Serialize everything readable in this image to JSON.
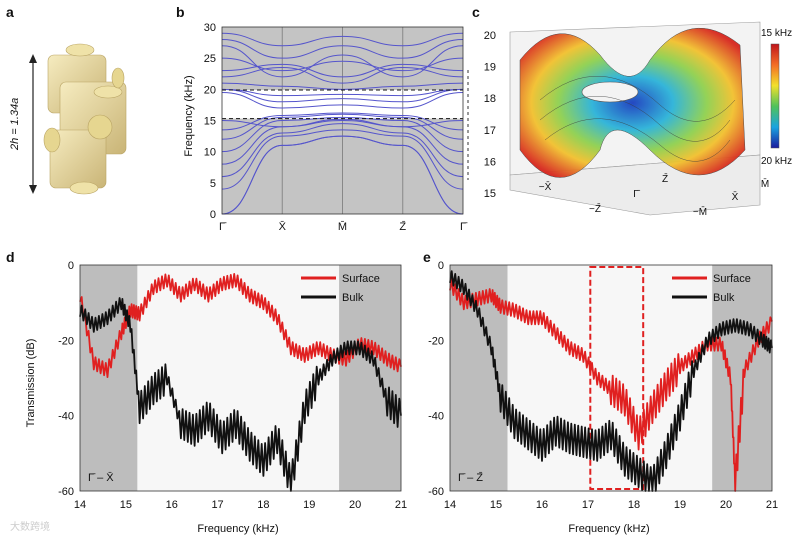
{
  "panels": {
    "a": {
      "letter": "a",
      "dimension_label": "2h = 1.34a"
    },
    "b": {
      "letter": "b",
      "ylabel": "Frequency (kHz)"
    },
    "c": {
      "letter": "c",
      "colorbar_top": "15 kHz",
      "colorbar_bottom": "20 kHz"
    },
    "d": {
      "letter": "d",
      "ylabel": "Transmission (dB)",
      "xlabel": "Frequency (kHz)",
      "path_label": "Γ̄ – X̄"
    },
    "e": {
      "letter": "e",
      "xlabel": "Frequency (kHz)",
      "path_label": "Γ̄ – Z̄"
    }
  },
  "watermark": "大数跨境",
  "colors": {
    "band": "#5555cc",
    "surface": "#e02020",
    "bulk": "#111111",
    "gray": "#bdbdbd"
  },
  "chart_data": [
    {
      "id": "b",
      "type": "line",
      "ylabel": "Frequency (kHz)",
      "ylim": [
        0,
        30
      ],
      "x_ticks": [
        "Γ̄",
        "X̄",
        "M̄",
        "Z̄",
        "Γ̄"
      ],
      "y_ticks": [
        0,
        5,
        10,
        15,
        20,
        25,
        30
      ],
      "gap_lines": [
        15.3,
        19.9
      ],
      "series": [
        {
          "values": [
            0,
            11,
            12.5,
            11,
            0
          ]
        },
        {
          "values": [
            0,
            11,
            12.5,
            11,
            0
          ]
        },
        {
          "values": [
            4,
            12.5,
            13.5,
            12.5,
            4
          ]
        },
        {
          "values": [
            6,
            13,
            14.5,
            13,
            6
          ]
        },
        {
          "values": [
            8,
            14,
            15,
            14,
            8
          ]
        },
        {
          "values": [
            10,
            15,
            15.5,
            15,
            10
          ]
        },
        {
          "values": [
            12,
            15.5,
            16,
            15.5,
            12
          ]
        },
        {
          "values": [
            13.5,
            15.8,
            16.2,
            15.8,
            13.5
          ]
        },
        {
          "values": [
            15,
            14,
            15.2,
            14,
            15
          ]
        },
        {
          "values": [
            19.5,
            17,
            17.5,
            17,
            19.5
          ]
        },
        {
          "values": [
            20,
            18,
            18.5,
            18,
            20
          ]
        },
        {
          "values": [
            20,
            19,
            19.2,
            19,
            20
          ]
        },
        {
          "values": [
            21,
            20.5,
            20,
            20.5,
            21
          ]
        },
        {
          "values": [
            22,
            23.5,
            21,
            23.5,
            22
          ]
        },
        {
          "values": [
            23,
            24,
            22,
            24,
            23
          ]
        },
        {
          "values": [
            25,
            23,
            24.5,
            23,
            25
          ]
        },
        {
          "values": [
            27,
            22,
            25.5,
            22,
            27
          ]
        },
        {
          "values": [
            28,
            25,
            27,
            25,
            28
          ]
        },
        {
          "values": [
            29,
            27,
            28.5,
            27,
            29
          ]
        }
      ]
    },
    {
      "id": "c",
      "type": "heatmap",
      "z_ticks": [
        15,
        16,
        17,
        18,
        19,
        20
      ],
      "x_ticks": [
        "−X̄",
        "−Z̄",
        "Γ̄",
        "Z̄",
        "X̄",
        "−M̄",
        "M̄"
      ],
      "colorbar": [
        "15 kHz",
        "20 kHz"
      ]
    },
    {
      "id": "d",
      "type": "line",
      "xlabel": "Frequency (kHz)",
      "ylabel": "Transmission (dB)",
      "xlim": [
        14,
        21
      ],
      "ylim": [
        -60,
        0
      ],
      "x_ticks": [
        14,
        15,
        16,
        17,
        18,
        19,
        20,
        21
      ],
      "y_ticks": [
        0,
        -20,
        -40,
        -60
      ],
      "gray_bands": [
        [
          14,
          15.25
        ],
        [
          19.65,
          21
        ]
      ],
      "legend": "top-right",
      "series": [
        {
          "name": "Surface",
          "color": "#e02020",
          "x": [
            14,
            14.3,
            14.6,
            14.9,
            15.1,
            15.3,
            15.6,
            15.9,
            16.2,
            16.5,
            16.8,
            17.1,
            17.4,
            17.7,
            18.0,
            18.3,
            18.6,
            18.9,
            19.2,
            19.5,
            19.8,
            20.1,
            20.4,
            20.7,
            21
          ],
          "y": [
            -8,
            -26,
            -28,
            -18,
            -12,
            -13,
            -6,
            -4,
            -8,
            -5,
            -8,
            -5,
            -4,
            -8,
            -10,
            -14,
            -22,
            -24,
            -22,
            -24,
            -25,
            -21,
            -22,
            -25,
            -27
          ]
        },
        {
          "name": "Bulk",
          "color": "#111111",
          "x": [
            14,
            14.3,
            14.6,
            14.9,
            15.1,
            15.3,
            15.6,
            15.9,
            16.2,
            16.5,
            16.8,
            17.1,
            17.4,
            17.7,
            18.0,
            18.3,
            18.6,
            18.9,
            19.2,
            19.5,
            19.8,
            20.1,
            20.4,
            20.7,
            21
          ],
          "y": [
            -12,
            -16,
            -14,
            -10,
            -16,
            -38,
            -33,
            -30,
            -42,
            -44,
            -40,
            -46,
            -42,
            -48,
            -52,
            -46,
            -58,
            -38,
            -30,
            -25,
            -22,
            -22,
            -25,
            -36,
            -40
          ]
        }
      ]
    },
    {
      "id": "e",
      "type": "line",
      "xlabel": "Frequency (kHz)",
      "xlim": [
        14,
        21
      ],
      "ylim": [
        -60,
        0
      ],
      "x_ticks": [
        14,
        15,
        16,
        17,
        18,
        19,
        20,
        21
      ],
      "y_ticks": [
        0,
        -20,
        -40,
        -60
      ],
      "gray_bands": [
        [
          14,
          15.25
        ],
        [
          19.7,
          21
        ]
      ],
      "highlight_box": [
        17.05,
        18.2
      ],
      "legend": "top-right",
      "series": [
        {
          "name": "Surface",
          "color": "#e02020",
          "x": [
            14,
            14.3,
            14.6,
            14.9,
            15.1,
            15.4,
            15.7,
            16.0,
            16.3,
            16.6,
            16.9,
            17.2,
            17.5,
            17.8,
            18.1,
            18.4,
            18.7,
            19.0,
            19.3,
            19.6,
            19.9,
            20.1,
            20.2,
            20.4,
            20.7,
            21
          ],
          "y": [
            -5,
            -10,
            -9,
            -8,
            -11,
            -12,
            -14,
            -14,
            -18,
            -22,
            -24,
            -30,
            -33,
            -36,
            -45,
            -38,
            -32,
            -27,
            -24,
            -21,
            -21,
            -30,
            -58,
            -28,
            -20,
            -15
          ]
        },
        {
          "name": "Bulk",
          "color": "#111111",
          "x": [
            14,
            14.3,
            14.6,
            14.9,
            15.1,
            15.4,
            15.7,
            16.0,
            16.3,
            16.6,
            16.9,
            17.2,
            17.5,
            17.8,
            18.1,
            18.4,
            18.7,
            19.0,
            19.3,
            19.6,
            19.9,
            20.2,
            20.5,
            20.8,
            21
          ],
          "y": [
            -3,
            -6,
            -12,
            -22,
            -35,
            -42,
            -45,
            -48,
            -44,
            -46,
            -47,
            -48,
            -45,
            -52,
            -55,
            -58,
            -50,
            -40,
            -28,
            -20,
            -17,
            -16,
            -17,
            -20,
            -22
          ]
        }
      ]
    }
  ]
}
